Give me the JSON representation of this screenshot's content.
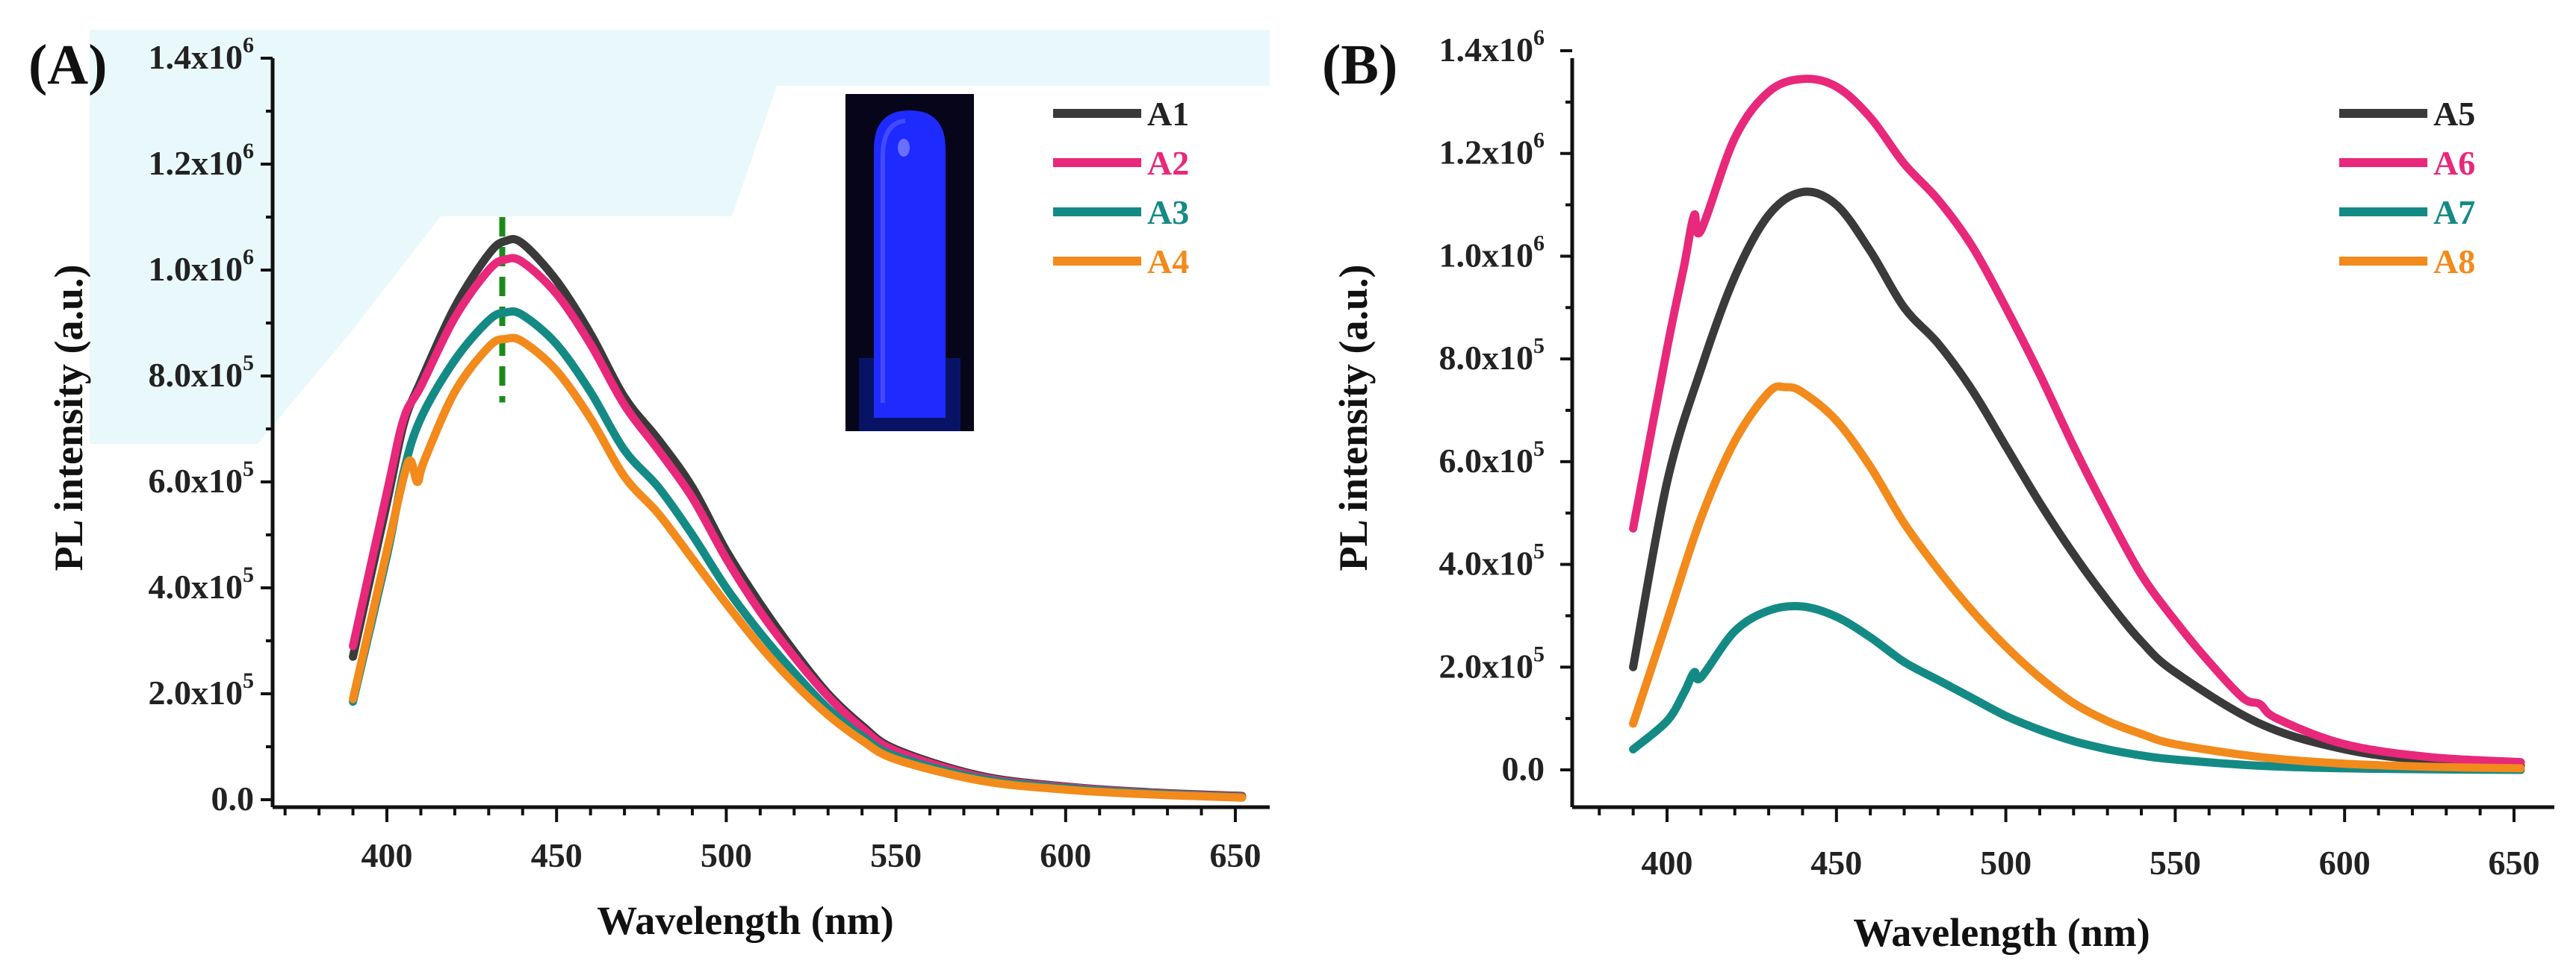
{
  "panels": [
    {
      "label": "(A)",
      "xlabel": "Wavelength (nm)",
      "ylabel": "PL intensity (a.u.)",
      "x_ticks": [
        "400",
        "450",
        "500",
        "550",
        "600",
        "650"
      ],
      "y_ticks": [
        {
          "base": "0.0",
          "exp": ""
        },
        {
          "base": "2.0x10",
          "exp": "5"
        },
        {
          "base": "4.0x10",
          "exp": "5"
        },
        {
          "base": "6.0x10",
          "exp": "5"
        },
        {
          "base": "8.0x10",
          "exp": "5"
        },
        {
          "base": "1.0x10",
          "exp": "6"
        },
        {
          "base": "1.2x10",
          "exp": "6"
        },
        {
          "base": "1.4x10",
          "exp": "6"
        }
      ],
      "peak_marker_nm": 434,
      "inset": "photo of vial under UV light emitting blue fluorescence"
    },
    {
      "label": "(B)",
      "xlabel": "Wavelength (nm)",
      "ylabel": "PL intensity (a.u.)",
      "x_ticks": [
        "400",
        "450",
        "500",
        "550",
        "600",
        "650"
      ],
      "y_ticks": [
        {
          "base": "0.0",
          "exp": ""
        },
        {
          "base": "2.0x10",
          "exp": "5"
        },
        {
          "base": "4.0x10",
          "exp": "5"
        },
        {
          "base": "6.0x10",
          "exp": "5"
        },
        {
          "base": "8.0x10",
          "exp": "5"
        },
        {
          "base": "1.0x10",
          "exp": "6"
        },
        {
          "base": "1.2x10",
          "exp": "6"
        },
        {
          "base": "1.4x10",
          "exp": "6"
        }
      ]
    }
  ],
  "colors": {
    "A1": "#3a3a3a",
    "A2": "#e8287a",
    "A3": "#148a85",
    "A4": "#f28a1c",
    "A5": "#3a3a3a",
    "A6": "#e8287a",
    "A7": "#148a85",
    "A8": "#f28a1c",
    "marker": "#1a8a1a",
    "vial": "#1f2aff"
  },
  "chart_data": [
    {
      "type": "line",
      "title": "(A)",
      "xlabel": "Wavelength (nm)",
      "ylabel": "PL intensity (a.u.)",
      "xlim": [
        365,
        655
      ],
      "ylim": [
        0,
        1400000
      ],
      "legend_position": "top-right",
      "series": [
        {
          "name": "A1",
          "x": [
            390,
            400,
            405,
            410,
            420,
            430,
            435,
            440,
            450,
            460,
            470,
            480,
            490,
            500,
            510,
            520,
            530,
            540,
            550,
            575,
            600,
            625,
            652
          ],
          "y": [
            270000,
            560000,
            710000,
            790000,
            930000,
            1030000,
            1055000,
            1050000,
            980000,
            880000,
            760000,
            680000,
            590000,
            470000,
            370000,
            280000,
            200000,
            140000,
            95000,
            45000,
            25000,
            14000,
            7000
          ]
        },
        {
          "name": "A2",
          "x": [
            390,
            400,
            405,
            410,
            420,
            430,
            435,
            440,
            450,
            460,
            470,
            480,
            490,
            500,
            510,
            520,
            530,
            540,
            550,
            575,
            600,
            625,
            652
          ],
          "y": [
            290000,
            580000,
            720000,
            780000,
            910000,
            1000000,
            1020000,
            1015000,
            955000,
            860000,
            745000,
            660000,
            570000,
            455000,
            355000,
            270000,
            195000,
            135000,
            92000,
            43000,
            24000,
            13000,
            6000
          ]
        },
        {
          "name": "A3",
          "x": [
            390,
            400,
            405,
            410,
            420,
            430,
            435,
            440,
            450,
            460,
            470,
            480,
            490,
            500,
            510,
            520,
            530,
            540,
            550,
            575,
            600,
            625,
            652
          ],
          "y": [
            185000,
            460000,
            620000,
            720000,
            830000,
            905000,
            920000,
            915000,
            860000,
            770000,
            660000,
            590000,
            500000,
            400000,
            315000,
            240000,
            172000,
            120000,
            82000,
            40000,
            22000,
            12000,
            5000
          ]
        },
        {
          "name": "A4",
          "x": [
            390,
            400,
            405,
            407,
            409,
            411,
            420,
            430,
            435,
            440,
            450,
            460,
            470,
            480,
            490,
            500,
            510,
            520,
            530,
            540,
            550,
            575,
            600,
            625,
            652
          ],
          "y": [
            190000,
            470000,
            610000,
            640000,
            600000,
            640000,
            770000,
            855000,
            870000,
            865000,
            810000,
            720000,
            610000,
            540000,
            455000,
            370000,
            290000,
            220000,
            160000,
            112000,
            76000,
            36000,
            19000,
            10000,
            4000
          ]
        }
      ],
      "annotations": [
        {
          "type": "vertical-dashed-line",
          "x": 434,
          "y_range": [
            750000,
            1100000
          ]
        }
      ]
    },
    {
      "type": "line",
      "title": "(B)",
      "xlabel": "Wavelength (nm)",
      "ylabel": "PL intensity (a.u.)",
      "xlim": [
        375,
        655
      ],
      "ylim": [
        -30000,
        1400000
      ],
      "legend_position": "top-right",
      "series": [
        {
          "name": "A5",
          "x": [
            390,
            400,
            410,
            420,
            430,
            440,
            450,
            460,
            470,
            480,
            490,
            500,
            510,
            520,
            530,
            540,
            550,
            575,
            600,
            625,
            652
          ],
          "y": [
            200000,
            560000,
            780000,
            960000,
            1080000,
            1125000,
            1100000,
            1010000,
            900000,
            830000,
            740000,
            630000,
            520000,
            420000,
            330000,
            250000,
            190000,
            90000,
            40000,
            18000,
            8000
          ]
        },
        {
          "name": "A6",
          "x": [
            390,
            400,
            405,
            408,
            410,
            420,
            430,
            440,
            450,
            460,
            470,
            480,
            490,
            500,
            510,
            520,
            530,
            540,
            550,
            560,
            570,
            575,
            580,
            600,
            625,
            652
          ],
          "y": [
            470000,
            820000,
            980000,
            1080000,
            1050000,
            1230000,
            1320000,
            1345000,
            1330000,
            1270000,
            1180000,
            1110000,
            1020000,
            900000,
            770000,
            630000,
            500000,
            380000,
            290000,
            210000,
            140000,
            128000,
            100000,
            50000,
            25000,
            15000
          ]
        },
        {
          "name": "A7",
          "x": [
            390,
            400,
            405,
            408,
            410,
            420,
            430,
            440,
            450,
            460,
            470,
            480,
            490,
            500,
            510,
            520,
            530,
            540,
            550,
            575,
            600,
            625,
            652
          ],
          "y": [
            40000,
            95000,
            150000,
            190000,
            180000,
            270000,
            310000,
            318000,
            298000,
            258000,
            210000,
            175000,
            140000,
            105000,
            78000,
            56000,
            40000,
            28000,
            20000,
            8000,
            3000,
            1000,
            0
          ]
        },
        {
          "name": "A8",
          "x": [
            390,
            400,
            410,
            420,
            430,
            435,
            440,
            450,
            460,
            470,
            480,
            490,
            500,
            510,
            520,
            530,
            540,
            550,
            575,
            600,
            625,
            652
          ],
          "y": [
            90000,
            290000,
            490000,
            640000,
            735000,
            745000,
            735000,
            680000,
            590000,
            480000,
            390000,
            310000,
            240000,
            180000,
            130000,
            95000,
            70000,
            50000,
            25000,
            12000,
            6000,
            3000
          ]
        }
      ]
    }
  ]
}
